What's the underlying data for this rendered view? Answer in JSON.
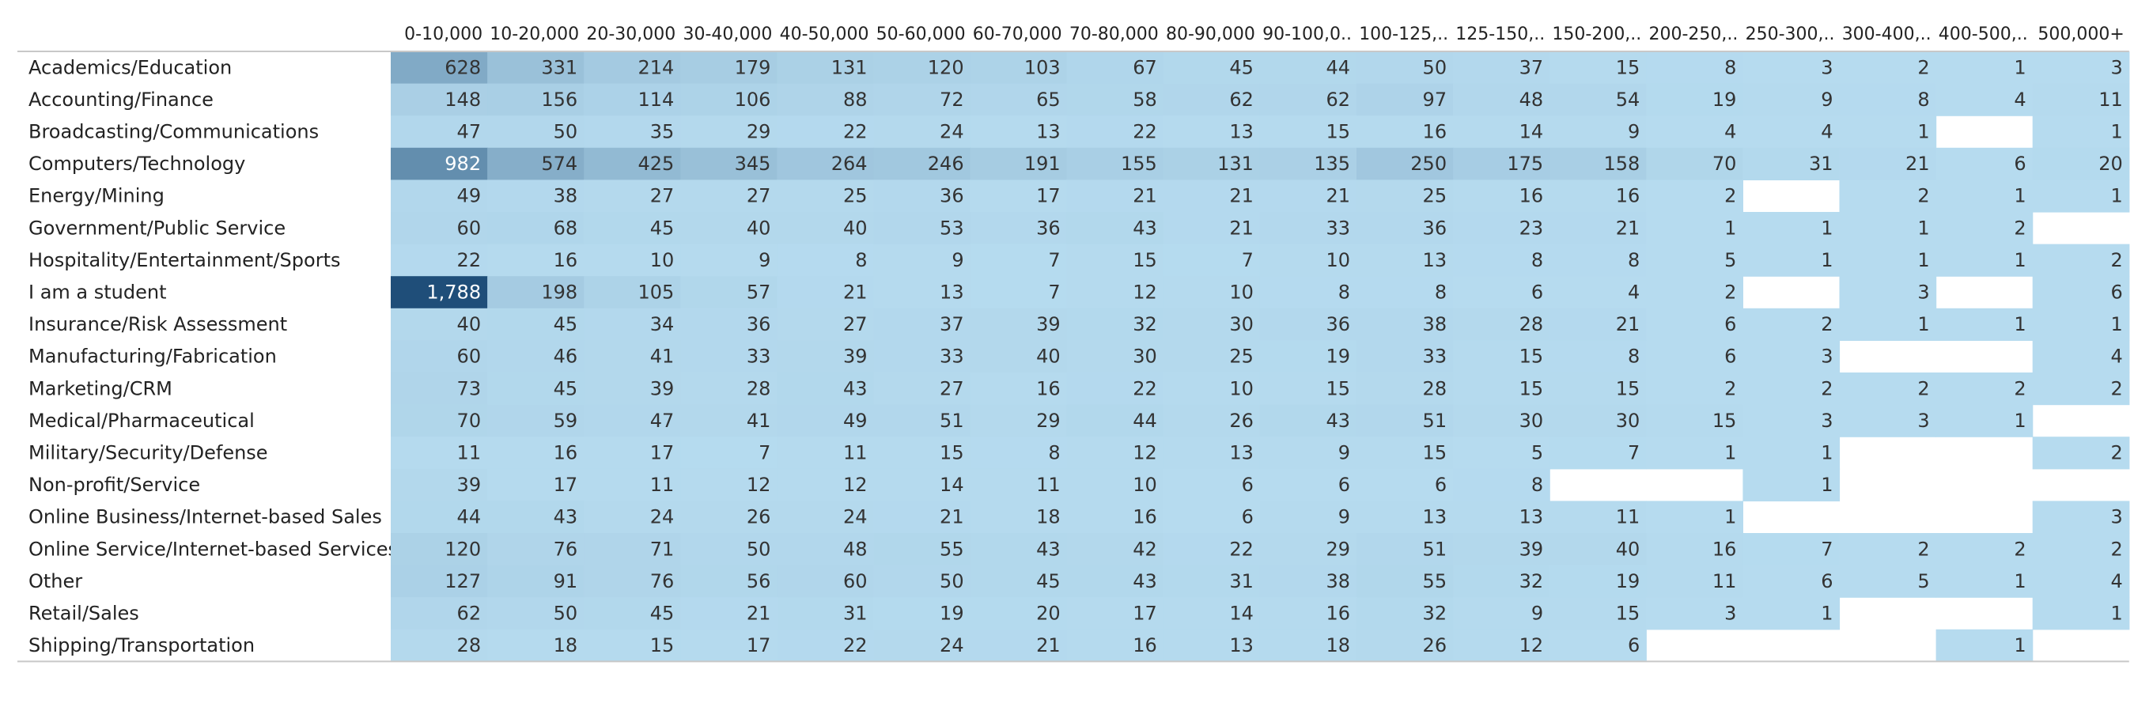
{
  "chart_data": {
    "type": "heatmap",
    "columns": [
      "0-10,000",
      "10-20,000",
      "20-30,000",
      "30-40,000",
      "40-50,000",
      "50-60,000",
      "60-70,000",
      "70-80,000",
      "80-90,000",
      "90-100,0..",
      "100-125,..",
      "125-150,..",
      "150-200,..",
      "200-250,..",
      "250-300,..",
      "300-400,..",
      "400-500,..",
      "500,000+"
    ],
    "rows": [
      "Academics/Education",
      "Accounting/Finance",
      "Broadcasting/Communications",
      "Computers/Technology",
      "Energy/Mining",
      "Government/Public Service",
      "Hospitality/Entertainment/Sports",
      "I am a student",
      "Insurance/Risk Assessment",
      "Manufacturing/Fabrication",
      "Marketing/CRM",
      "Medical/Pharmaceutical",
      "Military/Security/Defense",
      "Non-profit/Service",
      "Online Business/Internet-based Sales",
      "Online Service/Internet-based Services",
      "Other",
      "Retail/Sales",
      "Shipping/Transportation"
    ],
    "values": [
      [
        628,
        331,
        214,
        179,
        131,
        120,
        103,
        67,
        45,
        44,
        50,
        37,
        15,
        8,
        3,
        2,
        1,
        3
      ],
      [
        148,
        156,
        114,
        106,
        88,
        72,
        65,
        58,
        62,
        62,
        97,
        48,
        54,
        19,
        9,
        8,
        4,
        11
      ],
      [
        47,
        50,
        35,
        29,
        22,
        24,
        13,
        22,
        13,
        15,
        16,
        14,
        9,
        4,
        4,
        1,
        null,
        1
      ],
      [
        982,
        574,
        425,
        345,
        264,
        246,
        191,
        155,
        131,
        135,
        250,
        175,
        158,
        70,
        31,
        21,
        6,
        20
      ],
      [
        49,
        38,
        27,
        27,
        25,
        36,
        17,
        21,
        21,
        21,
        25,
        16,
        16,
        2,
        null,
        2,
        1,
        1
      ],
      [
        60,
        68,
        45,
        40,
        40,
        53,
        36,
        43,
        21,
        33,
        36,
        23,
        21,
        1,
        1,
        1,
        2,
        null
      ],
      [
        22,
        16,
        10,
        9,
        8,
        9,
        7,
        15,
        7,
        10,
        13,
        8,
        8,
        5,
        1,
        1,
        1,
        2
      ],
      [
        1788,
        198,
        105,
        57,
        21,
        13,
        7,
        12,
        10,
        8,
        8,
        6,
        4,
        2,
        null,
        3,
        null,
        6
      ],
      [
        40,
        45,
        34,
        36,
        27,
        37,
        39,
        32,
        30,
        36,
        38,
        28,
        21,
        6,
        2,
        1,
        1,
        1
      ],
      [
        60,
        46,
        41,
        33,
        39,
        33,
        40,
        30,
        25,
        19,
        33,
        15,
        8,
        6,
        3,
        null,
        null,
        4
      ],
      [
        73,
        45,
        39,
        28,
        43,
        27,
        16,
        22,
        10,
        15,
        28,
        15,
        15,
        2,
        2,
        2,
        2,
        2
      ],
      [
        70,
        59,
        47,
        41,
        49,
        51,
        29,
        44,
        26,
        43,
        51,
        30,
        30,
        15,
        3,
        3,
        1,
        null
      ],
      [
        11,
        16,
        17,
        7,
        11,
        15,
        8,
        12,
        13,
        9,
        15,
        5,
        7,
        1,
        1,
        null,
        null,
        2
      ],
      [
        39,
        17,
        11,
        12,
        12,
        14,
        11,
        10,
        6,
        6,
        6,
        8,
        null,
        null,
        1,
        null,
        null,
        null
      ],
      [
        44,
        43,
        24,
        26,
        24,
        21,
        18,
        16,
        6,
        9,
        13,
        13,
        11,
        1,
        null,
        null,
        null,
        3
      ],
      [
        120,
        76,
        71,
        50,
        48,
        55,
        43,
        42,
        22,
        29,
        51,
        39,
        40,
        16,
        7,
        2,
        2,
        2
      ],
      [
        127,
        91,
        76,
        56,
        60,
        50,
        45,
        43,
        31,
        38,
        55,
        32,
        19,
        11,
        6,
        5,
        1,
        4
      ],
      [
        62,
        50,
        45,
        21,
        31,
        19,
        20,
        17,
        14,
        16,
        32,
        9,
        15,
        3,
        1,
        null,
        null,
        1
      ],
      [
        28,
        18,
        15,
        17,
        22,
        24,
        21,
        16,
        13,
        18,
        26,
        12,
        6,
        null,
        null,
        null,
        1,
        null
      ]
    ],
    "color_scale": {
      "low": "#b6dbef",
      "high": "#1f4e79",
      "min": 1,
      "max": 1788
    },
    "colors": {
      "text_dark": "#333333",
      "text_light": "#ffffff",
      "rule": "#c8c8c8"
    }
  }
}
